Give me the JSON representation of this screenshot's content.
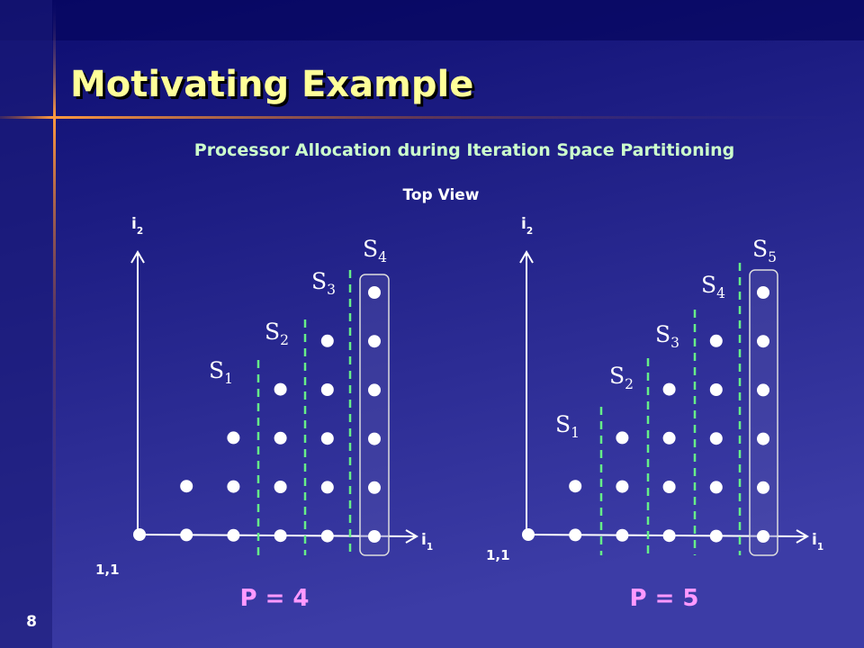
{
  "slide": {
    "title": "Motivating Example",
    "subtitle": "Processor Allocation during Iteration Space Partitioning",
    "caption": "Top View",
    "page_number": "8",
    "panels": [
      {
        "y_axis": {
          "base": "i",
          "sub": "2"
        },
        "x_axis": {
          "base": "i",
          "sub": "1"
        },
        "origin": "1,1",
        "stages": [
          {
            "base": "S",
            "sub": "1"
          },
          {
            "base": "S",
            "sub": "2"
          },
          {
            "base": "S",
            "sub": "3"
          },
          {
            "base": "S",
            "sub": "4"
          }
        ],
        "processors": "P = 4"
      },
      {
        "y_axis": {
          "base": "i",
          "sub": "2"
        },
        "x_axis": {
          "base": "i",
          "sub": "1"
        },
        "origin": "1,1",
        "stages": [
          {
            "base": "S",
            "sub": "1"
          },
          {
            "base": "S",
            "sub": "2"
          },
          {
            "base": "S",
            "sub": "3"
          },
          {
            "base": "S",
            "sub": "4"
          },
          {
            "base": "S",
            "sub": "5"
          }
        ],
        "processors": "P = 5"
      }
    ]
  }
}
